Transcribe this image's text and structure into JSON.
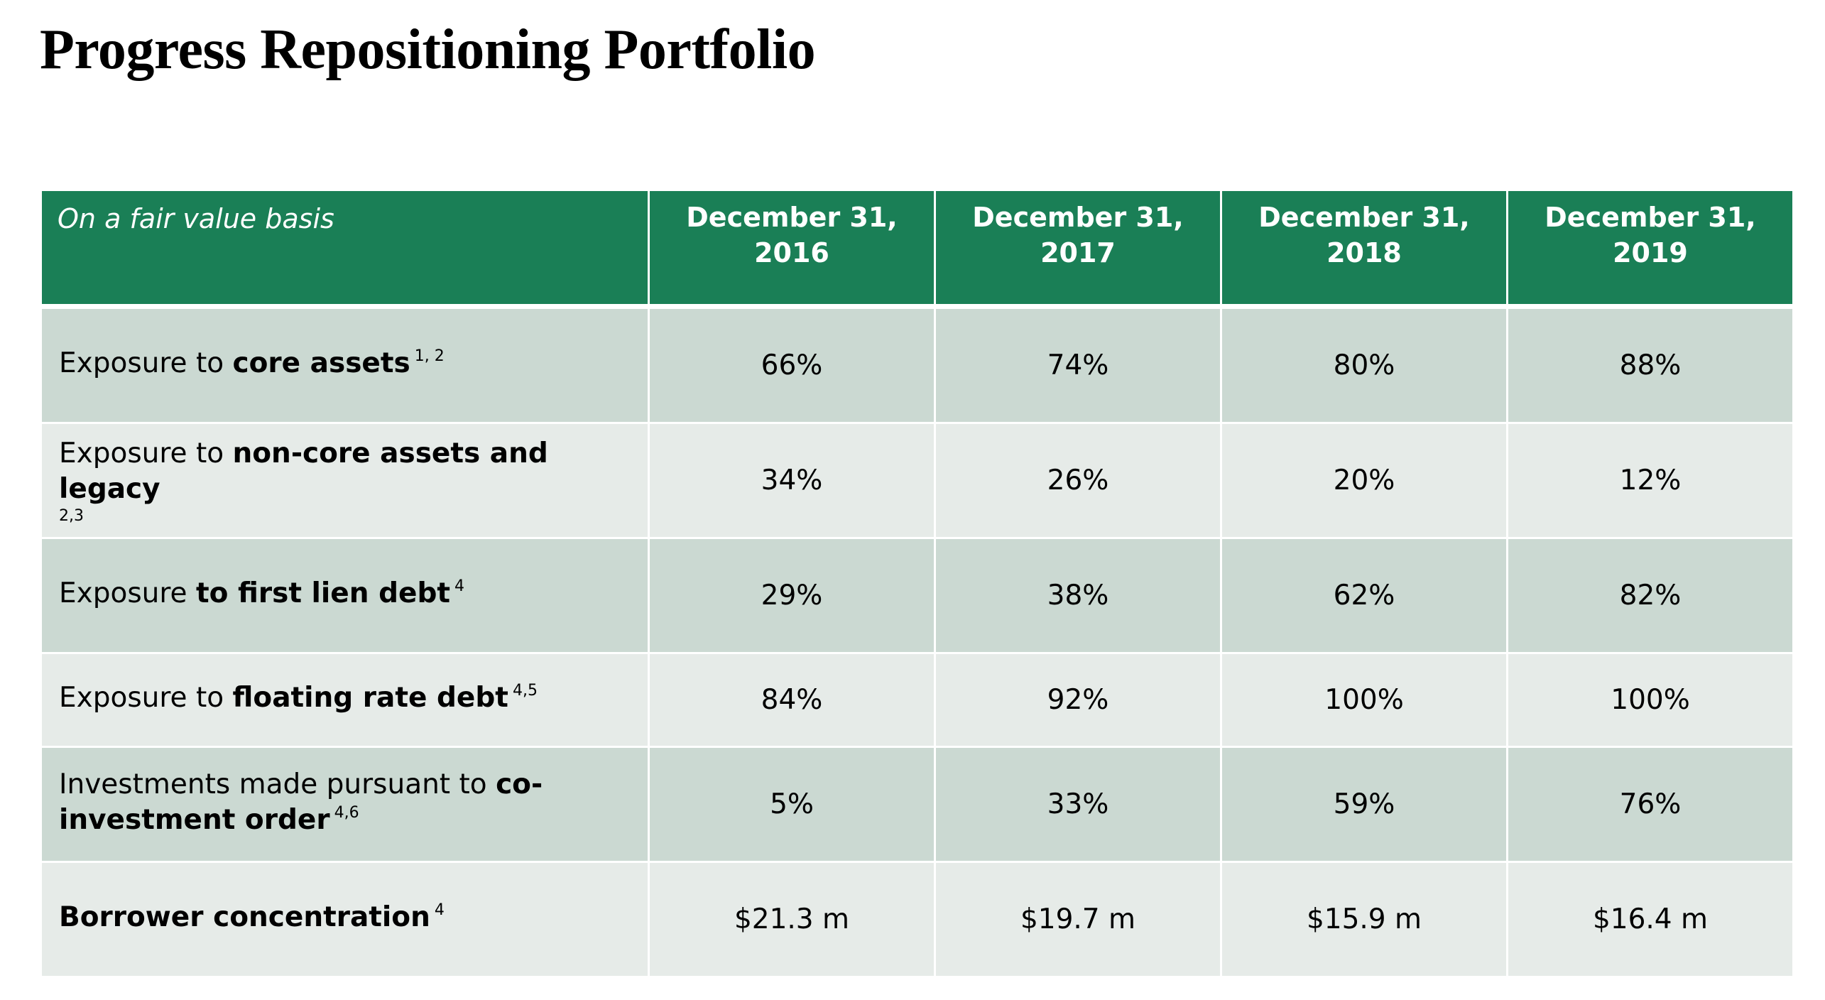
{
  "title": "Progress Repositioning Portfolio",
  "table": {
    "label_header": "On a fair value basis",
    "columns": [
      {
        "line1": "December 31,",
        "line2": "2016"
      },
      {
        "line1": "December 31,",
        "line2": "2017"
      },
      {
        "line1": "December 31,",
        "line2": "2018"
      },
      {
        "line1": "December 31,",
        "line2": "2019"
      }
    ],
    "rows": [
      {
        "prefix": "Exposure to ",
        "bold": "core assets",
        "note": "1, 2",
        "values": [
          "66%",
          "74%",
          "80%",
          "88%"
        ]
      },
      {
        "prefix": "Exposure to ",
        "bold": "non-core assets and legacy",
        "note": "2,3",
        "values": [
          "34%",
          "26%",
          "20%",
          "12%"
        ]
      },
      {
        "prefix": "Exposure ",
        "bold": "to first lien debt",
        "note": "4",
        "values": [
          "29%",
          "38%",
          "62%",
          "82%"
        ]
      },
      {
        "prefix": "Exposure to ",
        "bold": "floating rate debt",
        "note": "4,5",
        "values": [
          "84%",
          "92%",
          "100%",
          "100%"
        ]
      },
      {
        "prefix": "Investments made pursuant to ",
        "bold_line1": "co-",
        "bold_line2": "investment order",
        "note": "4,6",
        "values": [
          "5%",
          "33%",
          "59%",
          "76%"
        ]
      },
      {
        "bold": "Borrower concentration",
        "note": "4",
        "values": [
          "$21.3 m",
          "$19.7 m",
          "$15.9 m",
          "$16.4 m"
        ]
      }
    ]
  },
  "colors": {
    "header_green": "#1a7f56",
    "row_dark": "#cbd9d2",
    "row_light": "#e6ebe8"
  }
}
